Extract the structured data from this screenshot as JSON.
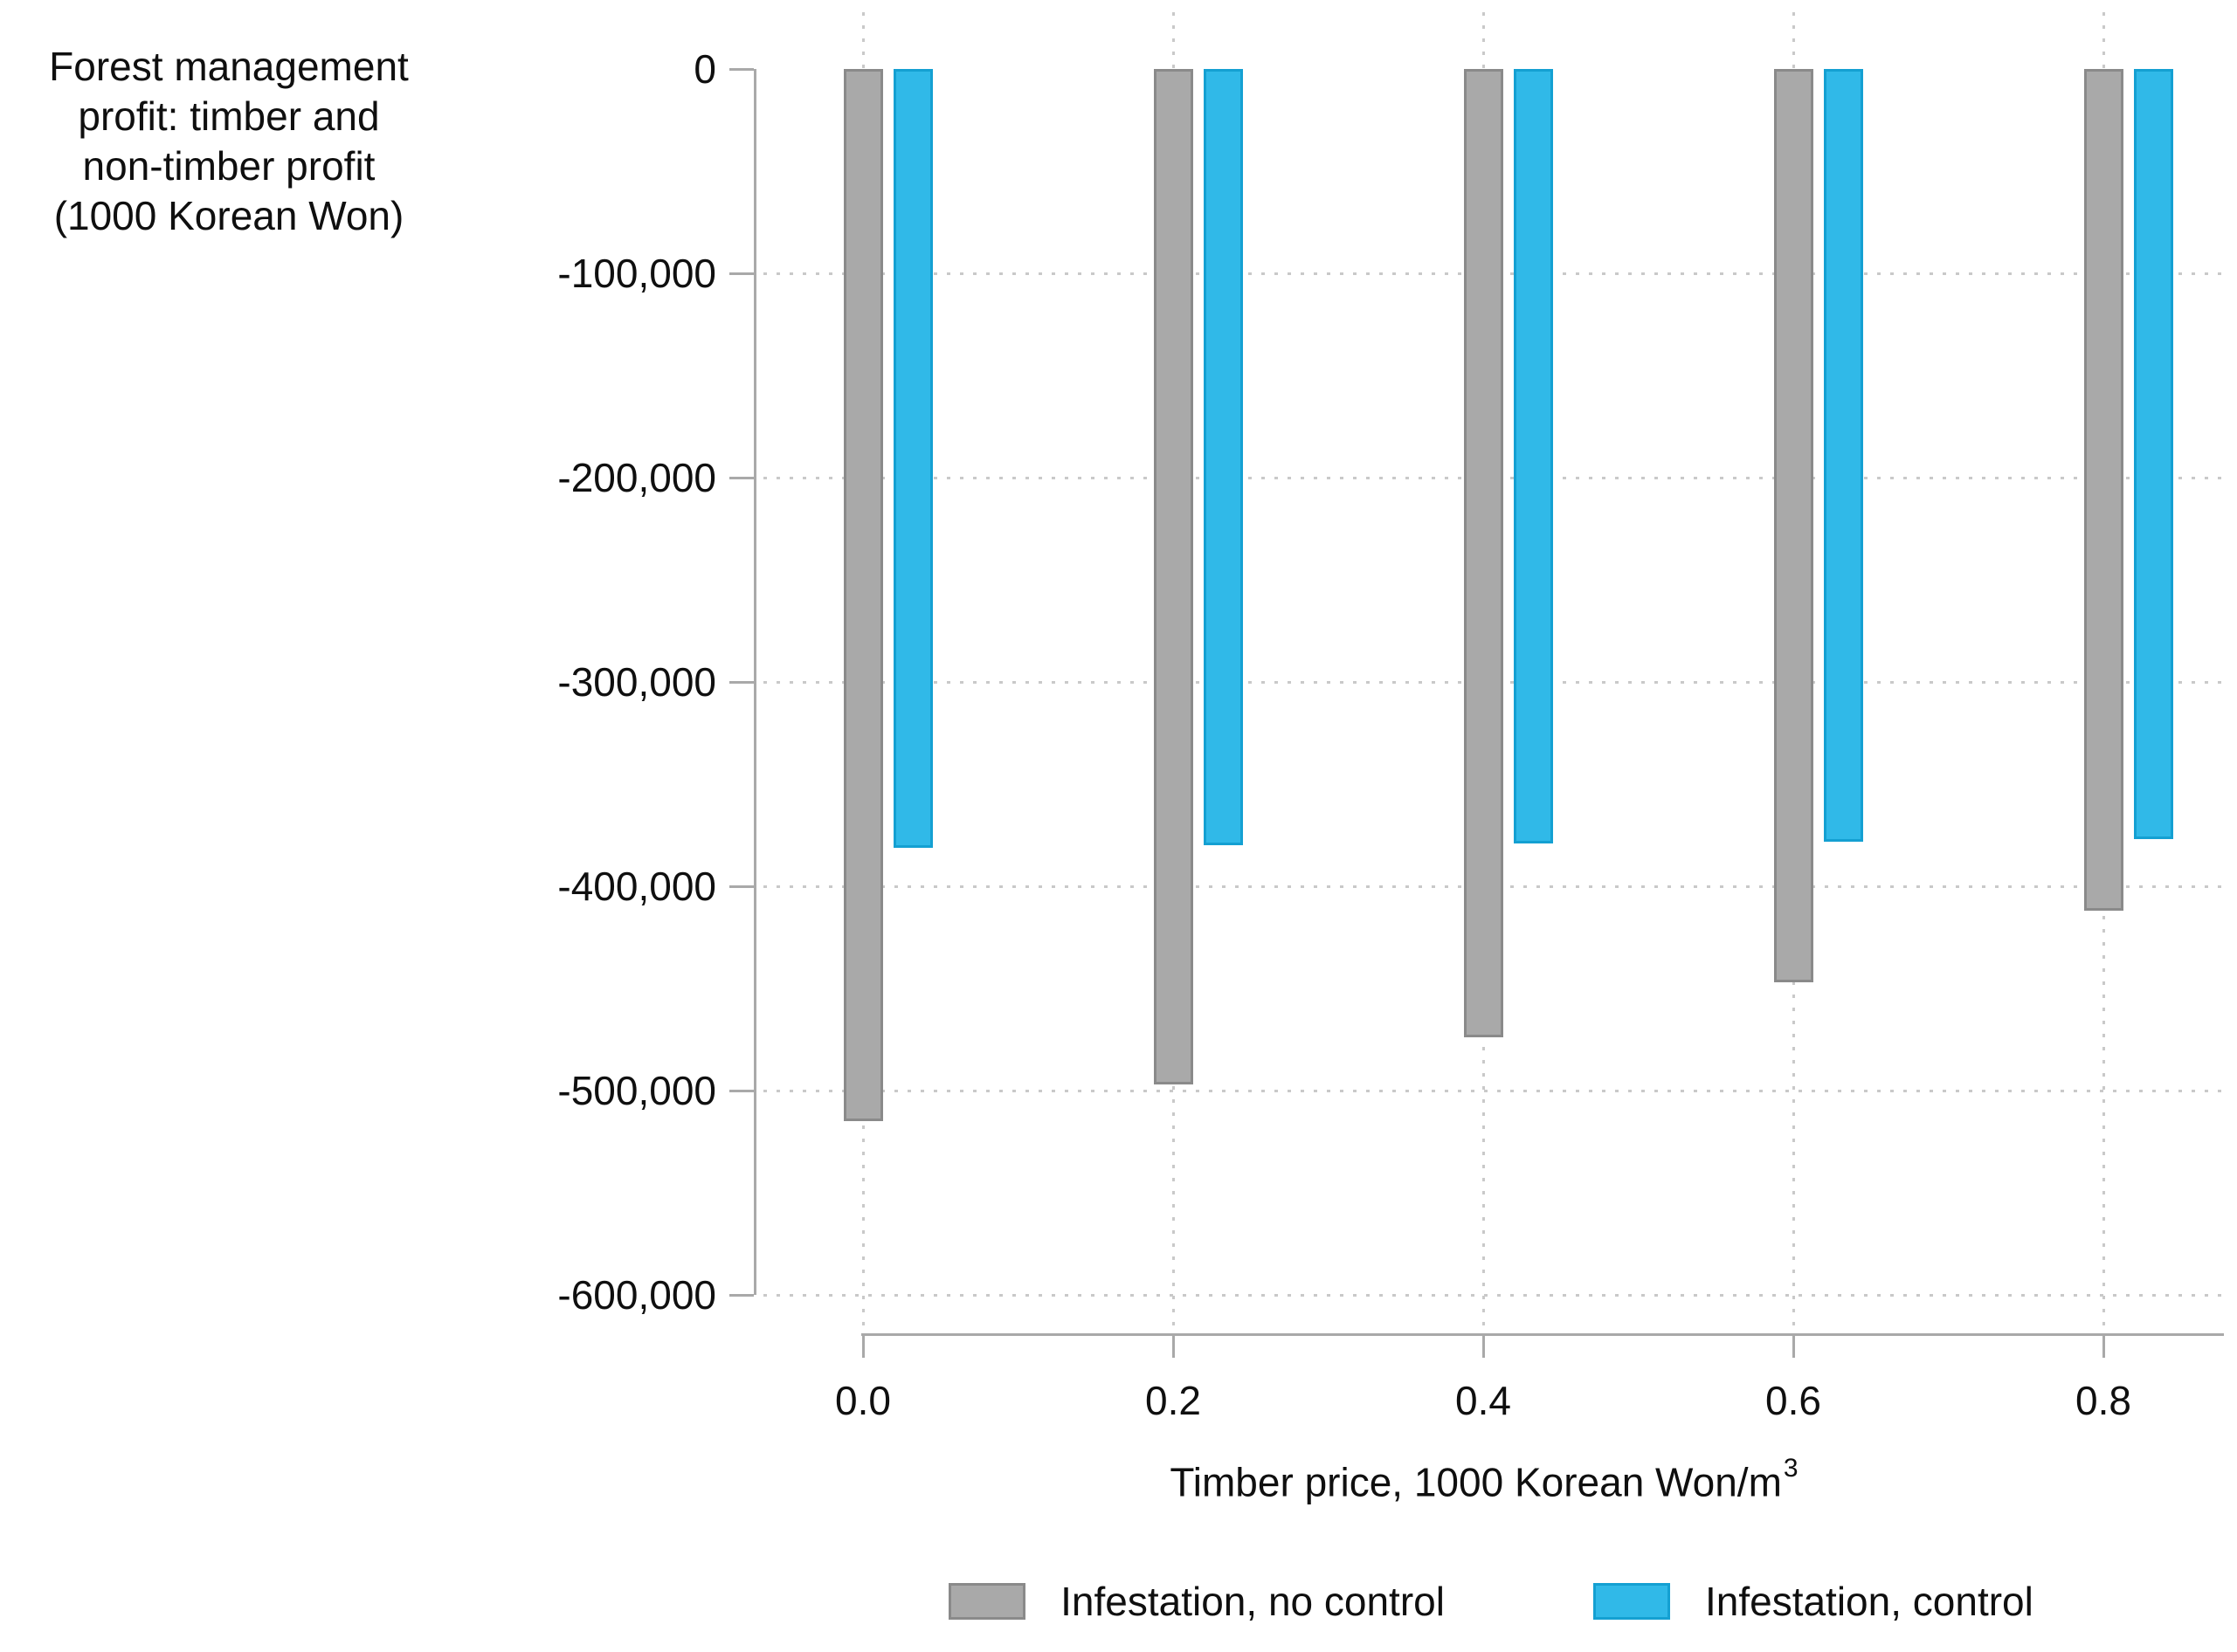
{
  "chart_data": {
    "type": "bar",
    "title": "",
    "y_axis_label_lines": [
      "Forest management",
      "profit: timber and",
      "non-timber profit",
      "(1000 Korean Won)"
    ],
    "x_axis_label": "Timber price, 1000 Korean Won/m",
    "x_axis_label_superscript": "3",
    "categories": [
      "0.0",
      "0.2",
      "0.4",
      "0.6",
      "0.8"
    ],
    "series": [
      {
        "name": "Infestation, no control",
        "color": "#a9a9a9",
        "border_color": "#8a8a8a",
        "values": [
          -515000,
          -497000,
          -474000,
          -447000,
          -412000
        ]
      },
      {
        "name": "Infestation, control",
        "color": "#30b9e8",
        "border_color": "#14a0d2",
        "values": [
          -381000,
          -380000,
          -379000,
          -378000,
          -377000
        ]
      }
    ],
    "y_ticks": [
      0,
      -100000,
      -200000,
      -300000,
      -400000,
      -500000,
      -600000
    ],
    "y_tick_labels": [
      "0",
      "-100,000",
      "-200,000",
      "-300,000",
      "-400,000",
      "-500,000",
      "-600,000"
    ],
    "ylim": [
      -600000,
      0
    ],
    "grid": "dotted",
    "gridline_color": "#c9c9c9",
    "axis_color": "#a9a9a9",
    "legend_position": "bottom"
  }
}
